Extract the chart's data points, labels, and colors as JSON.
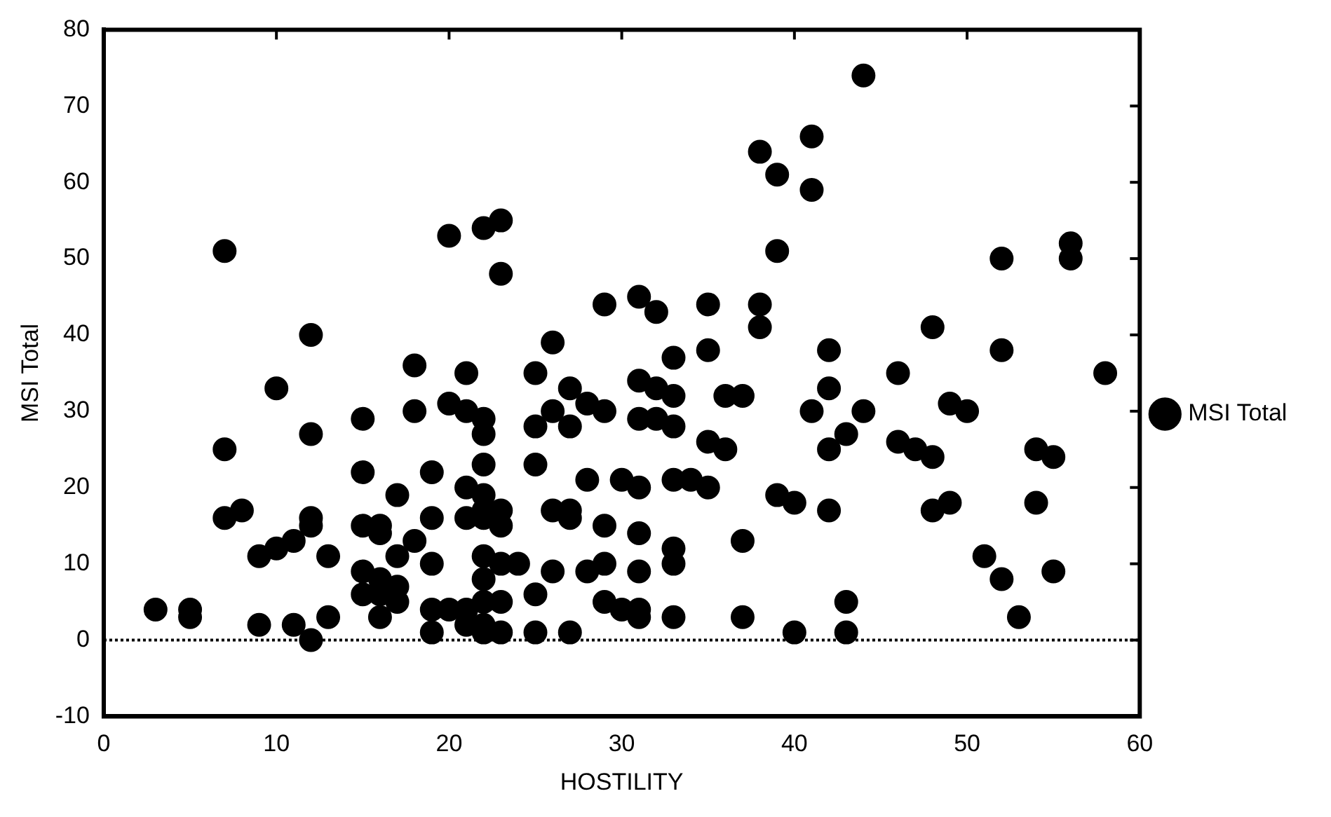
{
  "chart_data": {
    "type": "scatter",
    "xlabel": "HOSTILITY",
    "ylabel": "MSI Total",
    "xlim": [
      0,
      60
    ],
    "ylim": [
      -10,
      80
    ],
    "xticks": [
      0,
      10,
      20,
      30,
      40,
      50,
      60
    ],
    "yticks": [
      -10,
      0,
      10,
      20,
      30,
      40,
      50,
      60,
      70,
      80
    ],
    "grid": false,
    "legend": "right",
    "marker": "circle",
    "ref_lines": [
      {
        "axis": "y",
        "value": 0,
        "line_style": "dotted",
        "color": "#000000"
      }
    ],
    "series": [
      {
        "name": "MSI Total",
        "color": "#000000",
        "x": [
          3,
          5,
          5,
          7,
          7,
          7,
          8,
          9,
          9,
          10,
          10,
          11,
          11,
          12,
          12,
          12,
          12,
          12,
          13,
          13,
          15,
          15,
          15,
          15,
          15,
          16,
          16,
          16,
          16,
          16,
          17,
          17,
          17,
          17,
          18,
          18,
          18,
          19,
          19,
          19,
          19,
          19,
          20,
          20,
          20,
          21,
          21,
          21,
          21,
          21,
          21,
          22,
          22,
          22,
          22,
          22,
          22,
          22,
          22,
          22,
          22,
          22,
          22,
          23,
          23,
          23,
          23,
          23,
          23,
          23,
          24,
          25,
          25,
          25,
          25,
          25,
          26,
          26,
          26,
          26,
          27,
          27,
          27,
          27,
          27,
          28,
          28,
          28,
          29,
          29,
          29,
          29,
          29,
          30,
          30,
          31,
          31,
          31,
          31,
          31,
          31,
          31,
          31,
          32,
          32,
          32,
          33,
          33,
          33,
          33,
          33,
          33,
          33,
          34,
          35,
          35,
          35,
          35,
          36,
          36,
          37,
          37,
          37,
          38,
          38,
          38,
          39,
          39,
          39,
          40,
          40,
          41,
          41,
          41,
          42,
          42,
          42,
          42,
          43,
          43,
          43,
          44,
          44,
          46,
          46,
          47,
          48,
          48,
          48,
          49,
          49,
          50,
          51,
          52,
          52,
          52,
          53,
          54,
          54,
          55,
          55,
          56,
          56,
          58
        ],
        "values": [
          4,
          4,
          3,
          51,
          25,
          16,
          17,
          2,
          11,
          12,
          33,
          13,
          2,
          40,
          27,
          16,
          15,
          0,
          11,
          3,
          29,
          22,
          15,
          9,
          6,
          15,
          14,
          8,
          6,
          3,
          19,
          11,
          7,
          5,
          36,
          30,
          13,
          22,
          16,
          10,
          4,
          1,
          53,
          31,
          4,
          35,
          30,
          20,
          16,
          4,
          2,
          54,
          29,
          27,
          23,
          19,
          17,
          16,
          11,
          8,
          5,
          2,
          1,
          55,
          48,
          17,
          15,
          10,
          5,
          1,
          10,
          35,
          28,
          23,
          6,
          1,
          39,
          30,
          17,
          9,
          33,
          28,
          17,
          16,
          1,
          31,
          21,
          9,
          44,
          30,
          15,
          10,
          5,
          21,
          4,
          45,
          34,
          29,
          20,
          14,
          9,
          4,
          3,
          43,
          33,
          29,
          37,
          32,
          28,
          21,
          12,
          10,
          3,
          21,
          44,
          38,
          26,
          20,
          32,
          25,
          32,
          13,
          3,
          64,
          44,
          41,
          61,
          51,
          19,
          18,
          1,
          66,
          59,
          30,
          38,
          33,
          25,
          17,
          27,
          5,
          1,
          74,
          30,
          35,
          26,
          25,
          41,
          24,
          17,
          31,
          18,
          30,
          11,
          50,
          38,
          8,
          3,
          25,
          18,
          24,
          9,
          52,
          50,
          35
        ]
      }
    ]
  }
}
